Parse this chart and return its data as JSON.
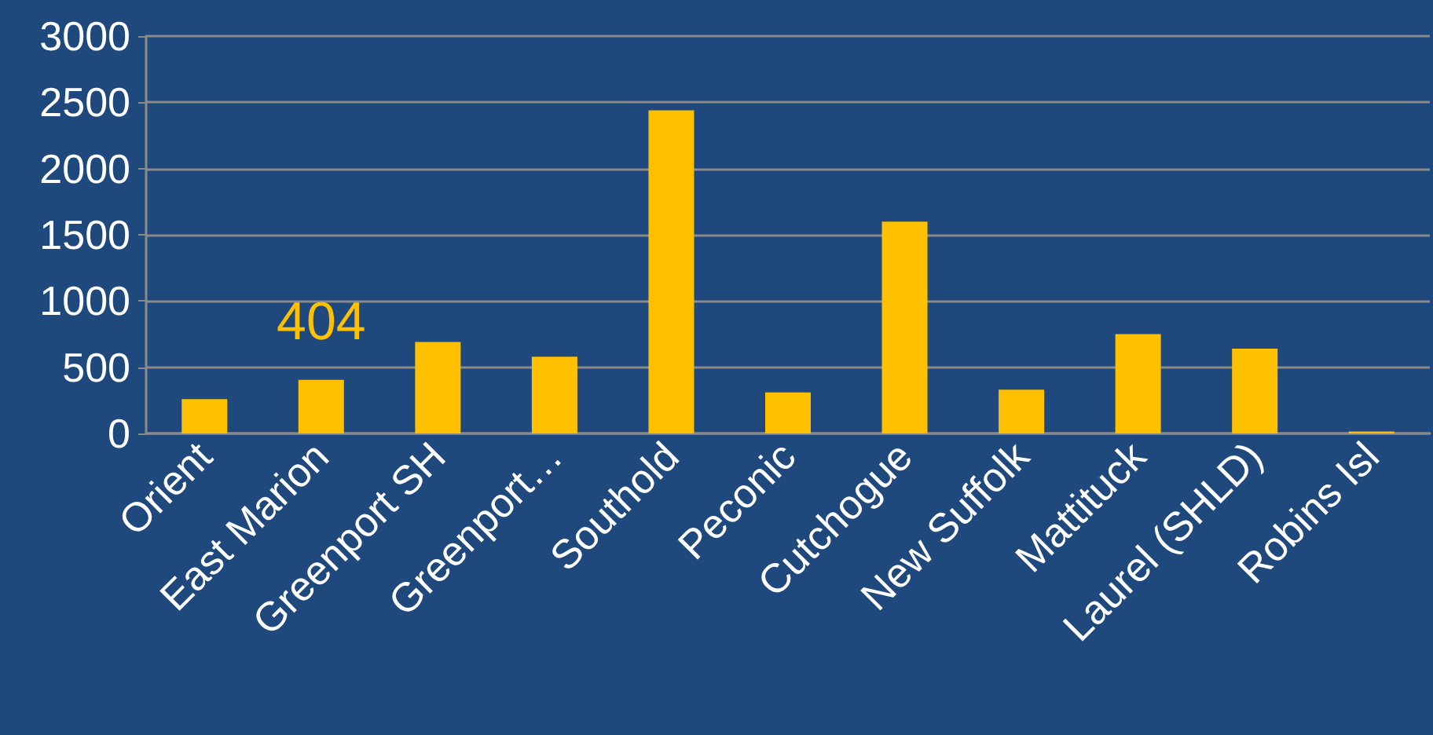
{
  "chart_data": {
    "type": "bar",
    "categories": [
      "Orient",
      "East Marion",
      "Greenport SH",
      "Greenport…",
      "Southold",
      "Peconic",
      "Cutchogue",
      "New Suffolk",
      "Mattituck",
      "Laurel (SHLD)",
      "Robins Isl"
    ],
    "values": [
      260,
      404,
      690,
      580,
      2440,
      310,
      1600,
      330,
      750,
      640,
      15
    ],
    "value_labels": [
      null,
      "404",
      null,
      null,
      null,
      null,
      null,
      null,
      null,
      null,
      null
    ],
    "color": "#ffc000",
    "ylim": [
      0,
      3000
    ],
    "yticks": [
      0,
      500,
      1000,
      1500,
      2000,
      2500,
      3000
    ],
    "grid": "y"
  }
}
